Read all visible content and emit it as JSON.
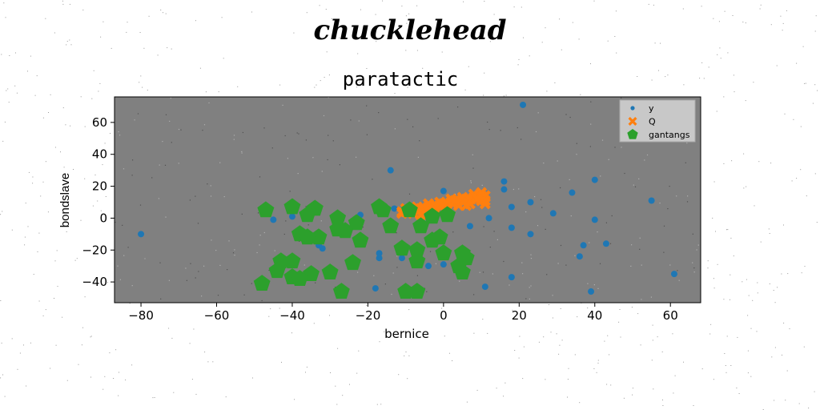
{
  "figure": {
    "suptitle": "chucklehead"
  },
  "colors": {
    "figure_bg": "#ffffff",
    "axes_bg": "#808080",
    "y": "#1f77b4",
    "Q": "#ff7f0e",
    "gantangs": "#2ca02c",
    "legend_bg": "#c8c8c8"
  },
  "chart_data": {
    "type": "scatter",
    "title": "paratactic",
    "xlabel": "bernice",
    "ylabel": "bondslave",
    "xlim": [
      -87,
      68
    ],
    "ylim": [
      -53,
      76
    ],
    "xticks": [
      -80,
      -60,
      -40,
      -20,
      0,
      20,
      40,
      60
    ],
    "yticks": [
      -40,
      -20,
      0,
      20,
      40,
      60
    ],
    "xtick_labels": [
      "−80",
      "−60",
      "−40",
      "−20",
      "0",
      "20",
      "40",
      "60"
    ],
    "ytick_labels": [
      "−40",
      "−20",
      "0",
      "20",
      "40",
      "60"
    ],
    "grid": false,
    "legend_position": "upper right",
    "series": [
      {
        "name": "y",
        "marker": "circle",
        "points": [
          [
            21,
            71
          ],
          [
            -14,
            30
          ],
          [
            16,
            23
          ],
          [
            40,
            24
          ],
          [
            16,
            18
          ],
          [
            0,
            17
          ],
          [
            34,
            16
          ],
          [
            55,
            11
          ],
          [
            23,
            10
          ],
          [
            -13,
            6
          ],
          [
            -6,
            6
          ],
          [
            18,
            7
          ],
          [
            29,
            3
          ],
          [
            -22,
            2
          ],
          [
            -40,
            1
          ],
          [
            -45,
            -1
          ],
          [
            12,
            0
          ],
          [
            40,
            -1
          ],
          [
            7,
            -5
          ],
          [
            18,
            -6
          ],
          [
            23,
            -10
          ],
          [
            -33,
            -17
          ],
          [
            -32,
            -19
          ],
          [
            37,
            -17
          ],
          [
            43,
            -16
          ],
          [
            -17,
            -22
          ],
          [
            -17,
            -25
          ],
          [
            -11,
            -25
          ],
          [
            36,
            -24
          ],
          [
            -7,
            -29
          ],
          [
            -4,
            -30
          ],
          [
            0,
            -29
          ],
          [
            61,
            -35
          ],
          [
            18,
            -37
          ],
          [
            -18,
            -44
          ],
          [
            11,
            -43
          ],
          [
            39,
            -46
          ],
          [
            -80,
            -10
          ]
        ]
      },
      {
        "name": "Q",
        "marker": "x",
        "points": [
          [
            -11,
            3
          ],
          [
            -10,
            4
          ],
          [
            -9,
            4
          ],
          [
            -8,
            5
          ],
          [
            -7,
            5
          ],
          [
            -6,
            6
          ],
          [
            -5,
            6
          ],
          [
            -4,
            7
          ],
          [
            -3,
            7
          ],
          [
            -2,
            8
          ],
          [
            -1,
            8
          ],
          [
            0,
            9
          ],
          [
            1,
            9
          ],
          [
            2,
            10
          ],
          [
            3,
            10
          ],
          [
            4,
            11
          ],
          [
            5,
            11
          ],
          [
            6,
            12
          ],
          [
            7,
            12
          ],
          [
            8,
            13
          ],
          [
            9,
            13
          ],
          [
            10,
            14
          ],
          [
            11,
            14
          ],
          [
            -8,
            3
          ],
          [
            -5,
            4
          ],
          [
            -2,
            5
          ],
          [
            1,
            6
          ],
          [
            4,
            8
          ],
          [
            7,
            9
          ],
          [
            10,
            11
          ],
          [
            11,
            11
          ],
          [
            -10,
            6
          ],
          [
            -7,
            7
          ],
          [
            -4,
            9
          ],
          [
            -1,
            10
          ],
          [
            2,
            12
          ],
          [
            5,
            13
          ],
          [
            8,
            15
          ],
          [
            10,
            16
          ],
          [
            -6,
            2
          ],
          [
            0,
            5
          ],
          [
            6,
            8
          ],
          [
            11,
            9
          ],
          [
            -11,
            4
          ],
          [
            3,
            11
          ],
          [
            9,
            12
          ]
        ]
      },
      {
        "name": "gantangs",
        "marker": "pentagon",
        "points": [
          [
            -47,
            5
          ],
          [
            -40,
            7
          ],
          [
            -34,
            6
          ],
          [
            -36,
            2
          ],
          [
            -17,
            7
          ],
          [
            -16,
            5
          ],
          [
            -9,
            5
          ],
          [
            -28,
            0
          ],
          [
            -23,
            -3
          ],
          [
            -14,
            -5
          ],
          [
            -6,
            -5
          ],
          [
            -3,
            1
          ],
          [
            1,
            2
          ],
          [
            -38,
            -10
          ],
          [
            -33,
            -12
          ],
          [
            -36,
            -12
          ],
          [
            -26,
            -8
          ],
          [
            -28,
            -7
          ],
          [
            -22,
            -14
          ],
          [
            -3,
            -14
          ],
          [
            -1,
            -12
          ],
          [
            -11,
            -19
          ],
          [
            -7,
            -20
          ],
          [
            -43,
            -27
          ],
          [
            -40,
            -27
          ],
          [
            -44,
            -33
          ],
          [
            -40,
            -37
          ],
          [
            -35,
            -35
          ],
          [
            -38,
            -38
          ],
          [
            -48,
            -41
          ],
          [
            -30,
            -34
          ],
          [
            -24,
            -28
          ],
          [
            -7,
            -27
          ],
          [
            0,
            -22
          ],
          [
            5,
            -22
          ],
          [
            6,
            -25
          ],
          [
            4,
            -30
          ],
          [
            5,
            -34
          ],
          [
            -27,
            -46
          ],
          [
            -10,
            -46
          ],
          [
            -7,
            -46
          ]
        ]
      }
    ]
  }
}
